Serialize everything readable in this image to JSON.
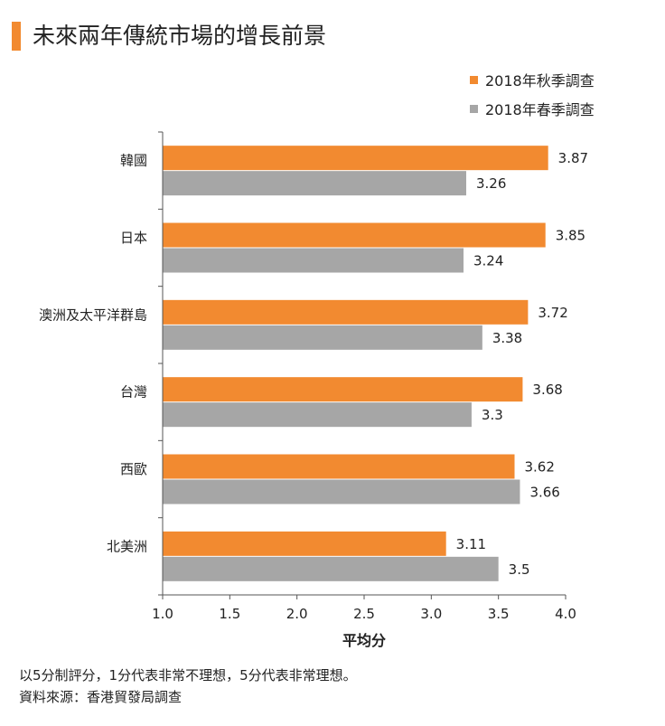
{
  "title": "未來兩年傳統市場的增長前景",
  "colors": {
    "accent": "#f28a30",
    "secondary": "#a6a6a6",
    "axis": "#555555"
  },
  "footnotes": [
    "以5分制評分，1分代表非常不理想，5分代表非常理想。",
    "資料來源：香港貿發局調查"
  ],
  "chart_data": {
    "type": "bar",
    "orientation": "horizontal",
    "title": "未來兩年傳統市場的增長前景",
    "xlabel": "平均分",
    "ylabel": "",
    "xlim": [
      1.0,
      4.0
    ],
    "x_ticks": [
      "1.0",
      "1.5",
      "2.0",
      "2.5",
      "3.0",
      "3.5",
      "4.0"
    ],
    "categories": [
      "韓國",
      "日本",
      "澳洲及太平洋群島",
      "台灣",
      "西歐",
      "北美洲"
    ],
    "series": [
      {
        "name": "2018年秋季調查",
        "color": "#f28a30",
        "values": [
          3.87,
          3.85,
          3.72,
          3.68,
          3.62,
          3.11
        ],
        "labels": [
          "3.87",
          "3.85",
          "3.72",
          "3.68",
          "3.62",
          "3.11"
        ]
      },
      {
        "name": "2018年春季調查",
        "color": "#a6a6a6",
        "values": [
          3.26,
          3.24,
          3.38,
          3.3,
          3.66,
          3.5
        ],
        "labels": [
          "3.26",
          "3.24",
          "3.38",
          "3.3",
          "3.66",
          "3.5"
        ]
      }
    ],
    "grid": false,
    "legend_position": "top-right"
  }
}
